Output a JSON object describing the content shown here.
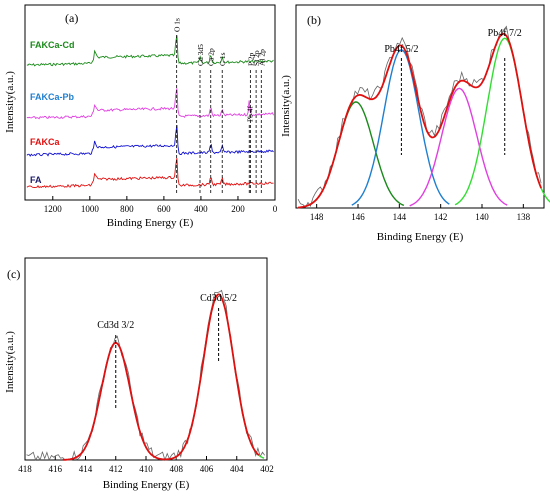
{
  "chart_data": [
    {
      "panel": "(a)",
      "type": "line",
      "xlabel": "Binding Energy (E)",
      "ylabel": "Intensity(a.u.)",
      "xlim": [
        1350,
        0
      ],
      "xticks": [
        1200,
        1000,
        800,
        600,
        400,
        200,
        0
      ],
      "series": [
        {
          "name": "FAKCa-Cd",
          "color": "#1a8a1a",
          "offset": 4
        },
        {
          "name": "FAKCa-Pb",
          "color": "#e040e0",
          "offset": 3
        },
        {
          "name": "FAKCa",
          "color": "#1010d0",
          "offset": 2
        },
        {
          "name": "FA",
          "color": "#e01010",
          "offset": 1
        }
      ],
      "series_label_colors": [
        "#1a8a1a",
        "#1f7fd0",
        "#e01010",
        "#1a1a6a"
      ],
      "peaks": [
        {
          "label": "O 1s",
          "x": 531
        },
        {
          "label": "Cd 3d5",
          "x": 405
        },
        {
          "label": "Ca 2p",
          "x": 347
        },
        {
          "label": "C 1s",
          "x": 285
        },
        {
          "label": "Pb 4f",
          "x": 139
        },
        {
          "label": "Si 2p",
          "x": 102
        },
        {
          "label": "Al 2p",
          "x": 74
        },
        {
          "label": "P 2p",
          "x": 133
        }
      ],
      "peak_labels_display": [
        "O 1s",
        "Cd 3d5",
        "Ca 2p",
        "C 1s",
        "Pb 4f",
        "P 2p",
        "Si 2p",
        "Al 2p"
      ]
    },
    {
      "panel": "(b)",
      "type": "line",
      "xlabel": "Binding Energy (E)",
      "ylabel": "Intensity(a.u.)",
      "xlim": [
        149,
        137
      ],
      "xticks": [
        148,
        146,
        144,
        142,
        140,
        138
      ],
      "components": [
        {
          "center": 146.1,
          "height": 0.55,
          "sigma": 0.85,
          "color": "#1a8a1a"
        },
        {
          "center": 143.9,
          "height": 0.82,
          "sigma": 0.85,
          "color": "#1f7fd0"
        },
        {
          "center": 141.1,
          "height": 0.62,
          "sigma": 0.85,
          "color": "#e040e0"
        },
        {
          "center": 138.9,
          "height": 0.88,
          "sigma": 0.85,
          "color": "#33dd33"
        }
      ],
      "envelope_color": "#e01010",
      "annotations": [
        {
          "label": "Pb4f 5/2",
          "x": 143.9
        },
        {
          "label": "Pb4f 7/2",
          "x": 138.9
        }
      ]
    },
    {
      "panel": "(c)",
      "type": "line",
      "xlabel": "Binding Energy (E)",
      "ylabel": "Intensity(a.u.)",
      "xlim": [
        418,
        402
      ],
      "xticks": [
        418,
        416,
        414,
        412,
        410,
        408,
        406,
        404,
        402
      ],
      "components": [
        {
          "center": 412.0,
          "height": 0.58,
          "sigma": 0.95,
          "color": "#1f7fd0"
        },
        {
          "center": 405.2,
          "height": 0.82,
          "sigma": 1.0,
          "color": "#33dd33"
        }
      ],
      "envelope_color": "#e01010",
      "annotations": [
        {
          "label": "Cd3d 3/2",
          "x": 412.0
        },
        {
          "label": "Cd3d 5/2",
          "x": 405.2
        }
      ]
    }
  ]
}
